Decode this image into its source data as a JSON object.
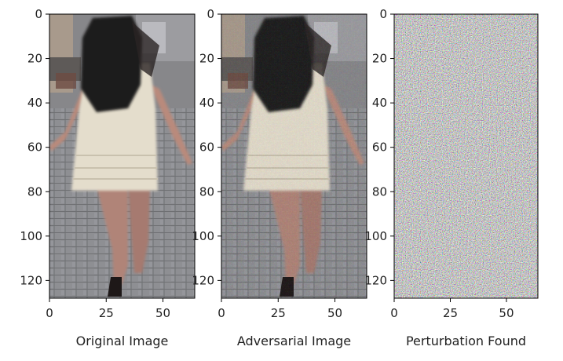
{
  "chart_data": [
    {
      "type": "image",
      "content": "photo of a woman walking away on a paved street, long dark hair, white sleeveless dress",
      "xlabel": "Original Image",
      "xticks": [
        0,
        25,
        50
      ],
      "yticks": [
        0,
        20,
        40,
        60,
        80,
        100,
        120
      ],
      "xlim": [
        0,
        64
      ],
      "ylim": [
        128,
        0
      ]
    },
    {
      "type": "image",
      "content": "nearly identical photo of the same woman with imperceptible adversarial noise",
      "xlabel": "Adversarial Image",
      "xticks": [
        0,
        25,
        50
      ],
      "yticks": [
        0,
        20,
        40,
        60,
        80,
        100,
        120
      ],
      "xlim": [
        0,
        64
      ],
      "ylim": [
        128,
        0
      ]
    },
    {
      "type": "image",
      "content": "random multicolored per-pixel noise",
      "xlabel": "Perturbation Found",
      "xticks": [
        0,
        25,
        50
      ],
      "yticks": [
        0,
        20,
        40,
        60,
        80,
        100,
        120
      ],
      "xlim": [
        0,
        64
      ],
      "ylim": [
        128,
        0
      ]
    }
  ],
  "colors": {
    "pavement": "#8a8a8c",
    "hair": "#1e1a1a",
    "dress": "#e4ddcc",
    "skin": "#b08478",
    "axis": "#000000"
  }
}
